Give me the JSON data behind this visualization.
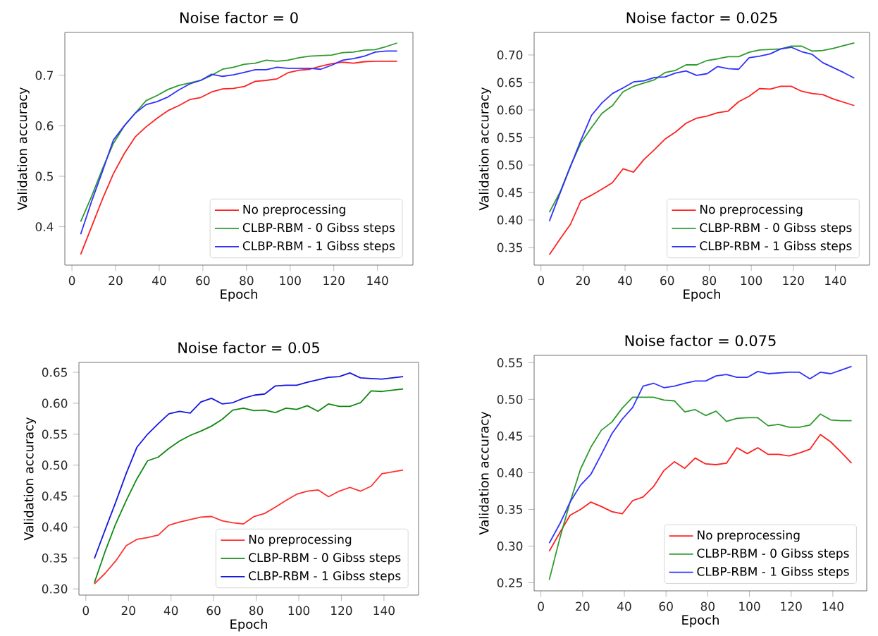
{
  "chart_data": [
    {
      "type": "line",
      "title": "Noise factor = 0",
      "xlabel": "Epoch",
      "ylabel": "Validation accuracy",
      "legend": "bottom right",
      "marker": "none",
      "line_style": "solid",
      "x": [
        4,
        9,
        14,
        19,
        24,
        29,
        34,
        39,
        44,
        49,
        54,
        59,
        64,
        69,
        74,
        79,
        84,
        89,
        94,
        99,
        104,
        109,
        114,
        119,
        124,
        129,
        134,
        139,
        144,
        149
      ],
      "xlim": [
        -3.25,
        156.25
      ],
      "ylim": [
        0.324,
        0.785
      ],
      "xticks": [
        0,
        20,
        40,
        60,
        80,
        100,
        120,
        140
      ],
      "yticks": [
        0.4,
        0.5,
        0.6,
        0.7
      ],
      "series": [
        {
          "name": "No preprocessing",
          "color": "#ff2020",
          "values": [
            0.345,
            0.4,
            0.455,
            0.505,
            0.545,
            0.578,
            0.598,
            0.615,
            0.63,
            0.64,
            0.652,
            0.656,
            0.667,
            0.673,
            0.674,
            0.678,
            0.688,
            0.69,
            0.693,
            0.705,
            0.71,
            0.712,
            0.718,
            0.723,
            0.726,
            0.724,
            0.727,
            0.728,
            0.728,
            0.728
          ]
        },
        {
          "name": "CLBP-RBM - 0 Gibss steps",
          "color": "#2e9a2e",
          "values": [
            0.41,
            0.46,
            0.515,
            0.565,
            0.6,
            0.625,
            0.65,
            0.66,
            0.672,
            0.68,
            0.685,
            0.69,
            0.7,
            0.712,
            0.716,
            0.722,
            0.724,
            0.73,
            0.728,
            0.73,
            0.735,
            0.738,
            0.739,
            0.74,
            0.745,
            0.746,
            0.75,
            0.751,
            0.757,
            0.764
          ]
        },
        {
          "name": "CLBP-RBM - 1 Gibss steps",
          "color": "#3030ff",
          "values": [
            0.385,
            0.45,
            0.51,
            0.572,
            0.6,
            0.625,
            0.642,
            0.648,
            0.657,
            0.671,
            0.683,
            0.69,
            0.702,
            0.698,
            0.701,
            0.706,
            0.711,
            0.711,
            0.716,
            0.714,
            0.714,
            0.714,
            0.712,
            0.72,
            0.73,
            0.733,
            0.738,
            0.746,
            0.748,
            0.748
          ]
        }
      ]
    },
    {
      "type": "line",
      "title": "Noise factor = 0.025",
      "xlabel": "Epoch",
      "ylabel": "Validation accuracy",
      "legend": "bottom right",
      "marker": "none",
      "line_style": "solid",
      "x": [
        4,
        9,
        14,
        19,
        24,
        29,
        34,
        39,
        44,
        49,
        54,
        59,
        64,
        69,
        74,
        79,
        84,
        89,
        94,
        99,
        104,
        109,
        114,
        119,
        124,
        129,
        134,
        139,
        144,
        149
      ],
      "xlim": [
        -3.25,
        156.25
      ],
      "ylim": [
        0.318,
        0.741
      ],
      "xticks": [
        0,
        20,
        40,
        60,
        80,
        100,
        120,
        140
      ],
      "yticks": [
        {
          "value": 0.35,
          "label": "0.35"
        },
        {
          "value": 0.4,
          "label": "0.40"
        },
        {
          "value": 0.45,
          "label": "0.45"
        },
        {
          "value": 0.5,
          "label": "0.50"
        },
        {
          "value": 0.55,
          "label": "0.55"
        },
        {
          "value": 0.6,
          "label": "0.60"
        },
        {
          "value": 0.65,
          "label": "0.65"
        },
        {
          "value": 0.7,
          "label": "0.70"
        }
      ],
      "series": [
        {
          "name": "No preprocessing",
          "color": "#ff2020",
          "values": [
            0.337,
            0.365,
            0.392,
            0.435,
            0.445,
            0.456,
            0.468,
            0.493,
            0.487,
            0.51,
            0.528,
            0.547,
            0.56,
            0.576,
            0.585,
            0.589,
            0.595,
            0.598,
            0.615,
            0.625,
            0.639,
            0.638,
            0.643,
            0.643,
            0.634,
            0.63,
            0.628,
            0.62,
            0.614,
            0.608
          ]
        },
        {
          "name": "CLBP-RBM - 0 Gibss steps",
          "color": "#2e9a2e",
          "values": [
            0.414,
            0.45,
            0.498,
            0.54,
            0.568,
            0.594,
            0.608,
            0.633,
            0.643,
            0.649,
            0.655,
            0.668,
            0.672,
            0.682,
            0.682,
            0.69,
            0.693,
            0.697,
            0.697,
            0.705,
            0.709,
            0.71,
            0.711,
            0.716,
            0.716,
            0.707,
            0.708,
            0.712,
            0.717,
            0.722
          ]
        },
        {
          "name": "CLBP-RBM - 1 Gibss steps",
          "color": "#3030ff",
          "values": [
            0.398,
            0.448,
            0.497,
            0.545,
            0.59,
            0.613,
            0.63,
            0.64,
            0.651,
            0.653,
            0.659,
            0.66,
            0.667,
            0.671,
            0.663,
            0.666,
            0.679,
            0.675,
            0.674,
            0.695,
            0.698,
            0.702,
            0.711,
            0.714,
            0.706,
            0.701,
            0.686,
            0.677,
            0.668,
            0.658
          ]
        }
      ]
    },
    {
      "type": "line",
      "title": "Noise factor = 0.05",
      "xlabel": "Epoch",
      "ylabel": "Validation accuracy",
      "legend": "bottom right",
      "marker": "none",
      "line_style": "solid",
      "x": [
        4,
        9,
        14,
        19,
        24,
        29,
        34,
        39,
        44,
        49,
        54,
        59,
        64,
        69,
        74,
        79,
        84,
        89,
        94,
        99,
        104,
        109,
        114,
        119,
        124,
        129,
        134,
        139,
        144,
        149
      ],
      "xlim": [
        -3.25,
        156.25
      ],
      "ylim": [
        0.29,
        0.666
      ],
      "xticks": [
        0,
        20,
        40,
        60,
        80,
        100,
        120,
        140
      ],
      "yticks": [
        {
          "value": 0.3,
          "label": "0.30"
        },
        {
          "value": 0.35,
          "label": "0.35"
        },
        {
          "value": 0.4,
          "label": "0.40"
        },
        {
          "value": 0.45,
          "label": "0.45"
        },
        {
          "value": 0.5,
          "label": "0.50"
        },
        {
          "value": 0.55,
          "label": "0.55"
        },
        {
          "value": 0.6,
          "label": "0.60"
        },
        {
          "value": 0.65,
          "label": "0.65"
        }
      ],
      "series": [
        {
          "name": "No preprocessing",
          "color": "#ff3030",
          "values": [
            0.308,
            0.325,
            0.345,
            0.37,
            0.38,
            0.383,
            0.387,
            0.403,
            0.408,
            0.412,
            0.416,
            0.417,
            0.41,
            0.407,
            0.405,
            0.417,
            0.422,
            0.432,
            0.443,
            0.453,
            0.458,
            0.46,
            0.449,
            0.458,
            0.464,
            0.458,
            0.466,
            0.486,
            0.489,
            0.492
          ]
        },
        {
          "name": "CLBP-RBM - 0 Gibss steps",
          "color": "#108810",
          "values": [
            0.31,
            0.36,
            0.405,
            0.443,
            0.478,
            0.507,
            0.513,
            0.527,
            0.539,
            0.548,
            0.555,
            0.563,
            0.574,
            0.589,
            0.592,
            0.588,
            0.589,
            0.585,
            0.592,
            0.59,
            0.596,
            0.587,
            0.599,
            0.595,
            0.595,
            0.601,
            0.62,
            0.619,
            0.621,
            0.623
          ]
        },
        {
          "name": "CLBP-RBM - 1 Gibss steps",
          "color": "#1515e0",
          "values": [
            0.349,
            0.395,
            0.44,
            0.487,
            0.529,
            0.55,
            0.567,
            0.583,
            0.587,
            0.584,
            0.602,
            0.608,
            0.599,
            0.601,
            0.608,
            0.613,
            0.615,
            0.628,
            0.629,
            0.629,
            0.634,
            0.638,
            0.642,
            0.643,
            0.649,
            0.641,
            0.64,
            0.639,
            0.641,
            0.643
          ]
        }
      ]
    },
    {
      "type": "line",
      "title": "Noise factor = 0.075",
      "xlabel": "Epoch",
      "ylabel": "Validation accuracy",
      "legend": "bottom right",
      "marker": "none",
      "line_style": "solid",
      "x": [
        4,
        9,
        14,
        19,
        24,
        29,
        34,
        39,
        44,
        49,
        54,
        59,
        64,
        69,
        74,
        79,
        84,
        89,
        94,
        99,
        104,
        109,
        114,
        119,
        124,
        129,
        134,
        139,
        144,
        149
      ],
      "xlim": [
        -3.25,
        156.25
      ],
      "ylim": [
        0.239,
        0.56
      ],
      "xticks": [
        0,
        20,
        40,
        60,
        80,
        100,
        120,
        140
      ],
      "yticks": [
        {
          "value": 0.25,
          "label": "0.25"
        },
        {
          "value": 0.3,
          "label": "0.30"
        },
        {
          "value": 0.35,
          "label": "0.35"
        },
        {
          "value": 0.4,
          "label": "0.40"
        },
        {
          "value": 0.45,
          "label": "0.45"
        },
        {
          "value": 0.5,
          "label": "0.50"
        },
        {
          "value": 0.55,
          "label": "0.55"
        }
      ],
      "series": [
        {
          "name": "No preprocessing",
          "color": "#ff2020",
          "values": [
            0.293,
            0.318,
            0.342,
            0.35,
            0.36,
            0.354,
            0.347,
            0.344,
            0.362,
            0.367,
            0.381,
            0.403,
            0.415,
            0.406,
            0.42,
            0.412,
            0.411,
            0.413,
            0.434,
            0.426,
            0.434,
            0.425,
            0.425,
            0.423,
            0.427,
            0.432,
            0.452,
            0.442,
            0.428,
            0.413
          ]
        },
        {
          "name": "CLBP-RBM - 0 Gibss steps",
          "color": "#2e9a2e",
          "values": [
            0.254,
            0.31,
            0.36,
            0.405,
            0.435,
            0.458,
            0.469,
            0.488,
            0.503,
            0.503,
            0.503,
            0.499,
            0.498,
            0.483,
            0.486,
            0.478,
            0.484,
            0.47,
            0.474,
            0.475,
            0.475,
            0.464,
            0.466,
            0.462,
            0.462,
            0.465,
            0.48,
            0.472,
            0.471,
            0.471
          ]
        },
        {
          "name": "CLBP-RBM - 1 Gibss steps",
          "color": "#3030ff",
          "values": [
            0.304,
            0.33,
            0.36,
            0.383,
            0.398,
            0.425,
            0.453,
            0.473,
            0.489,
            0.518,
            0.522,
            0.516,
            0.518,
            0.522,
            0.525,
            0.525,
            0.532,
            0.534,
            0.53,
            0.53,
            0.538,
            0.535,
            0.536,
            0.537,
            0.537,
            0.528,
            0.537,
            0.535,
            0.54,
            0.545
          ]
        }
      ]
    }
  ]
}
